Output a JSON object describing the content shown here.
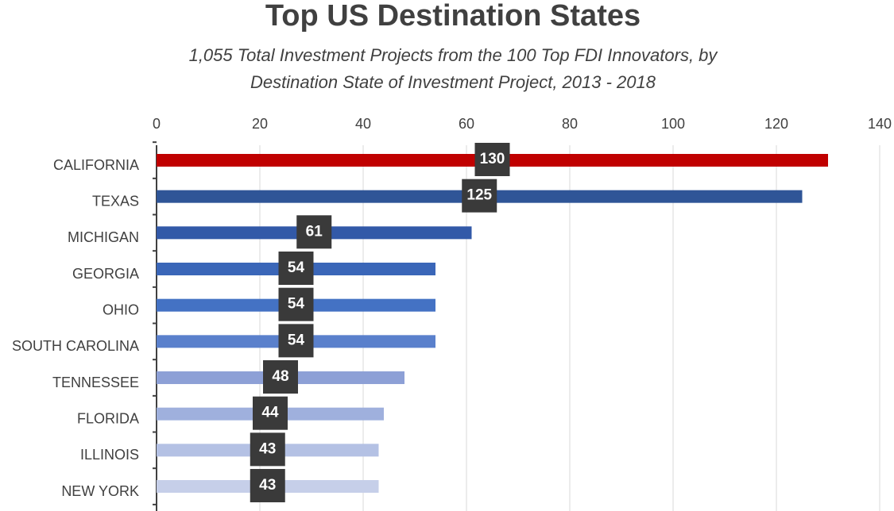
{
  "chart_data": {
    "type": "barh",
    "title": "Top US Destination States",
    "subtitle": [
      "1,055 Total Investment Projects from the 100 Top FDI Innovators, by",
      "Destination State of Investment Project, 2013 - 2018"
    ],
    "categories": [
      "CALIFORNIA",
      "TEXAS",
      "MICHIGAN",
      "GEORGIA",
      "OHIO",
      "SOUTH CAROLINA",
      "TENNESSEE",
      "FLORIDA",
      "ILLINOIS",
      "NEW YORK"
    ],
    "values": [
      130,
      125,
      61,
      54,
      54,
      54,
      48,
      44,
      43,
      43
    ],
    "colors": [
      "#c00000",
      "#2f5597",
      "#3259a8",
      "#3a66b8",
      "#4472c4",
      "#5a80cc",
      "#8da0d6",
      "#9fb0dd",
      "#b4c1e4",
      "#c6cfe9"
    ],
    "xlim": [
      0,
      140
    ],
    "xticks": [
      0,
      20,
      40,
      60,
      80,
      100,
      120,
      140
    ],
    "grid": true
  }
}
